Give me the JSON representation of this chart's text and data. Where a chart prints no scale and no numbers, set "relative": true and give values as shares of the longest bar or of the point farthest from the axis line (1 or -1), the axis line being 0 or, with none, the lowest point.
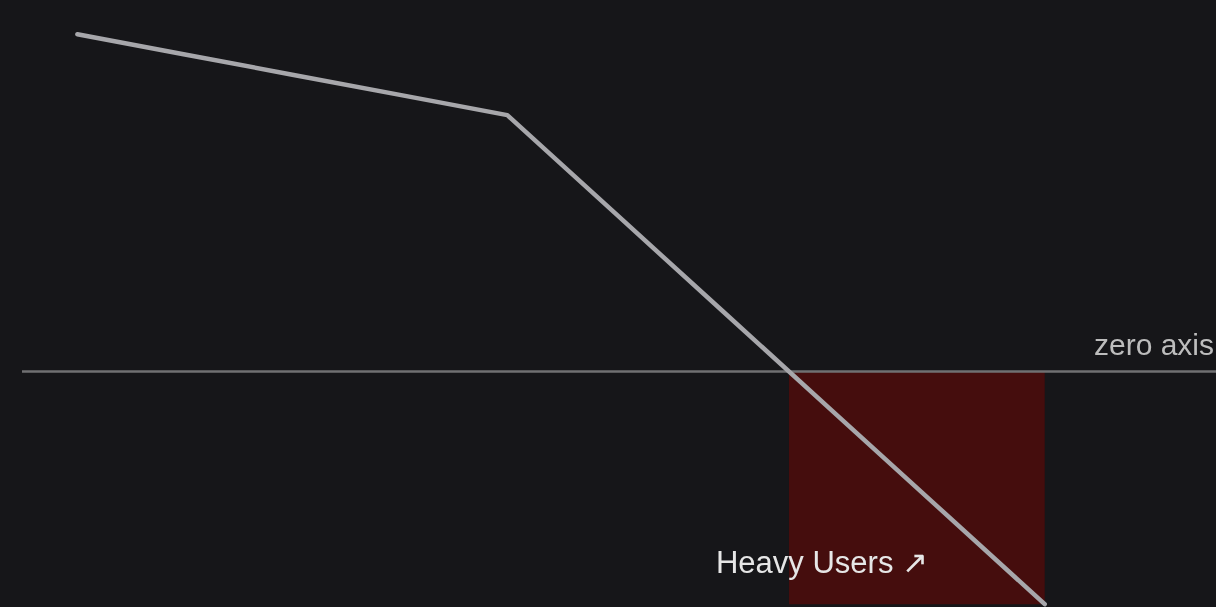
{
  "chart_data": {
    "type": "line",
    "relative": true,
    "categories": [
      null,
      null,
      null,
      null,
      null,
      null,
      null,
      null,
      null,
      null
    ],
    "grid": false,
    "marker": "none",
    "line_style": "solid",
    "series": [
      {
        "color": "#a7a7ab",
        "values": [
          1,
          0.94,
          0.88,
          0.82,
          0.76,
          0.47,
          0.18,
          -0.11,
          -0.4,
          -0.69
        ]
      }
    ],
    "ref_lines": [
      {
        "axis": "y",
        "value": 0,
        "label": "zero axis",
        "color": "#707072"
      }
    ],
    "bands": [
      {
        "axis": "y",
        "from": 0,
        "to": -0.69,
        "label": null,
        "color": "#4a0c0c"
      }
    ],
    "annotations": [
      "Heavy Users ↗"
    ]
  }
}
